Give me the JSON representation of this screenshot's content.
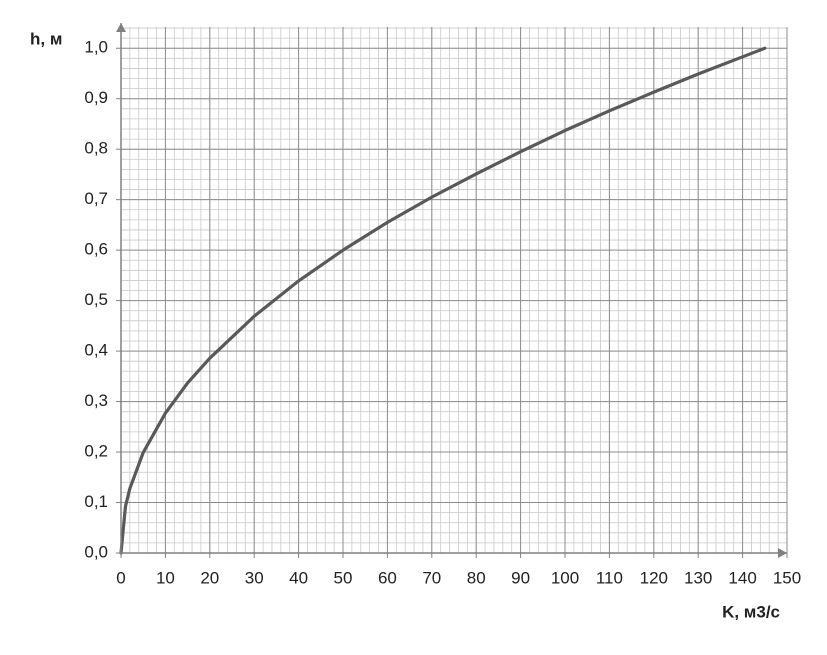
{
  "chart_data": {
    "type": "line",
    "x_label": "K, м3/с",
    "y_label": "h, м",
    "xlim": [
      0,
      150
    ],
    "ylim": [
      0,
      1.05
    ],
    "xticks": [
      0,
      10,
      20,
      30,
      40,
      50,
      60,
      70,
      80,
      90,
      100,
      110,
      120,
      130,
      140,
      150
    ],
    "yticks": [
      {
        "value": 0,
        "label": "0,0"
      },
      {
        "value": 0.1,
        "label": "0,1"
      },
      {
        "value": 0.2,
        "label": "0,2"
      },
      {
        "value": 0.3,
        "label": "0,3"
      },
      {
        "value": 0.4,
        "label": "0,4"
      },
      {
        "value": 0.5,
        "label": "0,5"
      },
      {
        "value": 0.6,
        "label": "0,6"
      },
      {
        "value": 0.7,
        "label": "0,7"
      },
      {
        "value": 0.8,
        "label": "0,8"
      },
      {
        "value": 0.9,
        "label": "0,9"
      },
      {
        "value": 1.0,
        "label": "1,0"
      }
    ],
    "grid": true,
    "minor_grid": true,
    "x": [
      0,
      1,
      2,
      5,
      10,
      15,
      20,
      30,
      40,
      50,
      60,
      70,
      80,
      90,
      100,
      110,
      120,
      130,
      140,
      145
    ],
    "series": [
      {
        "color": "#595959",
        "values": [
          0,
          0.092,
          0.128,
          0.199,
          0.277,
          0.337,
          0.386,
          0.469,
          0.539,
          0.6,
          0.655,
          0.705,
          0.751,
          0.795,
          0.837,
          0.876,
          0.913,
          0.949,
          0.983,
          1.0
        ]
      }
    ]
  }
}
